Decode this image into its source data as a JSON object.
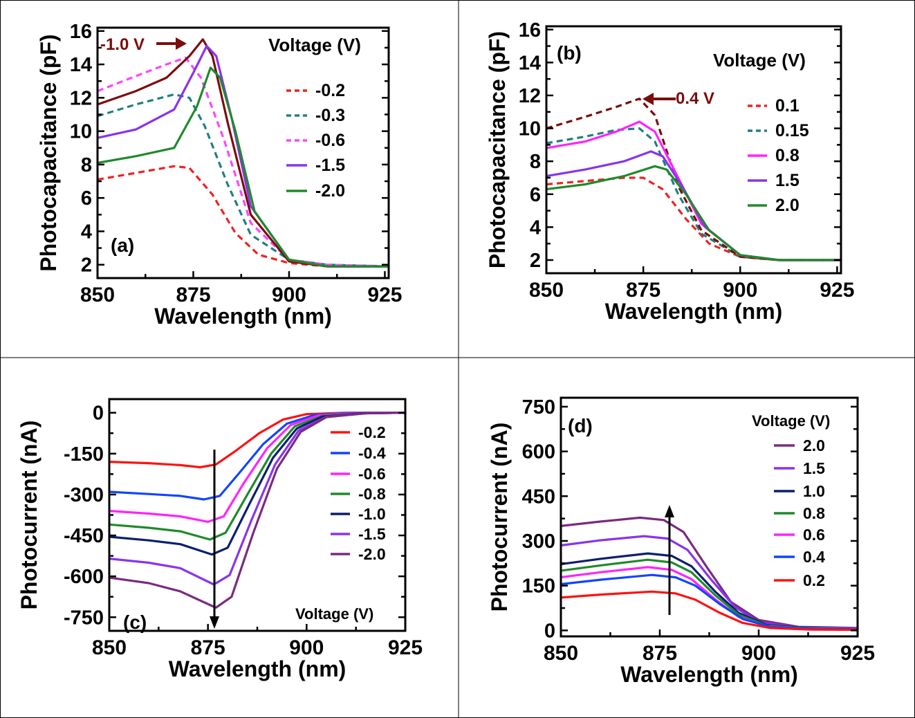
{
  "chart_data": [
    {
      "type": "line",
      "panel_label": "(a)",
      "xlabel": "Wavelength (nm)",
      "ylabel": "Photocapacitance (pF)",
      "xlim": [
        850,
        926
      ],
      "ylim": [
        1.2,
        16.2
      ],
      "xticks": [
        850,
        875,
        900,
        925
      ],
      "yticks": [
        2,
        4,
        6,
        8,
        10,
        12,
        14,
        16
      ],
      "legend_title": "Voltage (V)",
      "legend_position": "top-right",
      "annotation": {
        "text": "-1.0 V",
        "color": "#7b0c0c",
        "target_series": "-1.0"
      },
      "series": [
        {
          "name": "-0.2",
          "color": "#ee2222",
          "dash": true,
          "legend": true,
          "x": [
            850,
            860,
            870,
            874,
            880,
            886,
            892,
            900,
            910,
            926
          ],
          "y": [
            7.1,
            7.5,
            7.9,
            7.8,
            6.2,
            3.9,
            2.6,
            2.1,
            1.9,
            1.9
          ]
        },
        {
          "name": "-0.3",
          "color": "#1f8080",
          "dash": true,
          "legend": true,
          "x": [
            850,
            860,
            870,
            874,
            878,
            884,
            890,
            900,
            910,
            926
          ],
          "y": [
            10.9,
            11.6,
            12.2,
            12.0,
            10.3,
            6.8,
            3.8,
            2.3,
            2.0,
            1.9
          ]
        },
        {
          "name": "-0.6",
          "color": "#ff44ff",
          "dash": true,
          "legend": true,
          "x": [
            850,
            860,
            868,
            873,
            877,
            883,
            890,
            900,
            910,
            926
          ],
          "y": [
            12.4,
            13.3,
            14.0,
            14.4,
            13.2,
            9.5,
            4.5,
            2.3,
            2.0,
            1.9
          ]
        },
        {
          "name": "-1.0",
          "color": "#7b0c0c",
          "dash": false,
          "legend": false,
          "x": [
            850,
            860,
            868,
            874,
            877.5,
            880,
            884,
            890,
            900,
            910,
            926
          ],
          "y": [
            11.6,
            12.4,
            13.2,
            14.5,
            15.5,
            14.5,
            10.5,
            5.0,
            2.2,
            1.9,
            1.9
          ]
        },
        {
          "name": "-1.5",
          "color": "#8833ee",
          "dash": false,
          "legend": true,
          "x": [
            850,
            860,
            870,
            875,
            878.5,
            881,
            885,
            890,
            900,
            910,
            926
          ],
          "y": [
            9.6,
            10.1,
            11.3,
            13.5,
            15.1,
            14.5,
            10.8,
            5.5,
            2.3,
            1.9,
            1.9
          ]
        },
        {
          "name": "-2.0",
          "color": "#1f8a2a",
          "dash": false,
          "legend": true,
          "x": [
            850,
            860,
            870,
            876,
            879.5,
            882,
            886,
            891,
            900,
            910,
            926
          ],
          "y": [
            8.1,
            8.5,
            9.0,
            11.5,
            13.8,
            13.2,
            10.0,
            5.2,
            2.3,
            1.9,
            1.9
          ]
        }
      ]
    },
    {
      "type": "line",
      "panel_label": "(b)",
      "xlabel": "Wavelength (nm)",
      "ylabel": "Photocapacitance (pF)",
      "xlim": [
        850,
        926
      ],
      "ylim": [
        1.2,
        16.2
      ],
      "xticks": [
        850,
        875,
        900,
        925
      ],
      "yticks": [
        2,
        4,
        6,
        8,
        10,
        12,
        14,
        16
      ],
      "legend_title": "Voltage (V)",
      "legend_position": "top-right",
      "annotation": {
        "text": "0.4 V",
        "color": "#7b0c0c",
        "target_series": "0.4"
      },
      "series": [
        {
          "name": "0.1",
          "color": "#ee2222",
          "dash": true,
          "legend": true,
          "x": [
            850,
            860,
            870,
            875,
            880,
            886,
            892,
            900,
            910,
            926
          ],
          "y": [
            6.6,
            6.8,
            7.0,
            7.0,
            6.3,
            4.5,
            3.0,
            2.2,
            2.0,
            2.0
          ]
        },
        {
          "name": "0.15",
          "color": "#1f8080",
          "dash": true,
          "legend": true,
          "x": [
            850,
            860,
            868,
            874,
            878,
            884,
            890,
            900,
            910,
            926
          ],
          "y": [
            9.1,
            9.5,
            9.9,
            10.0,
            9.2,
            6.0,
            3.6,
            2.2,
            2.0,
            2.0
          ]
        },
        {
          "name": "0.4",
          "color": "#7b0c0c",
          "dash": true,
          "legend": false,
          "x": [
            850,
            860,
            868,
            874,
            876,
            878,
            884,
            890,
            900,
            910,
            926
          ],
          "y": [
            10.0,
            10.7,
            11.3,
            11.8,
            11.3,
            10.8,
            6.5,
            3.8,
            2.2,
            2.0,
            2.0
          ]
        },
        {
          "name": "0.8",
          "color": "#ff22ff",
          "dash": false,
          "legend": true,
          "x": [
            850,
            860,
            868,
            874,
            878,
            884,
            890,
            900,
            910,
            926
          ],
          "y": [
            8.8,
            9.2,
            9.8,
            10.4,
            9.8,
            7.0,
            4.2,
            2.3,
            2.0,
            2.0
          ]
        },
        {
          "name": "1.5",
          "color": "#8833ee",
          "dash": false,
          "legend": true,
          "x": [
            850,
            860,
            870,
            877,
            880,
            885,
            891,
            900,
            910,
            926
          ],
          "y": [
            7.1,
            7.5,
            8.0,
            8.6,
            8.3,
            6.5,
            4.0,
            2.3,
            2.0,
            2.0
          ]
        },
        {
          "name": "2.0",
          "color": "#1f8a2a",
          "dash": false,
          "legend": true,
          "x": [
            850,
            860,
            870,
            878,
            881,
            886,
            892,
            900,
            910,
            926
          ],
          "y": [
            6.3,
            6.6,
            7.1,
            7.7,
            7.5,
            6.0,
            3.8,
            2.3,
            2.0,
            2.0
          ]
        }
      ]
    },
    {
      "type": "line",
      "panel_label": "(c)",
      "xlabel": "Wavelength (nm)",
      "ylabel": "Photocurrent (nA)",
      "xlim": [
        850,
        925
      ],
      "ylim": [
        -800,
        50
      ],
      "xticks": [
        850,
        875,
        900,
        925
      ],
      "yticks": [
        0,
        -150,
        -300,
        -450,
        -600,
        -750
      ],
      "legend_title": "Voltage (V)",
      "legend_position": "right",
      "arrow": "down",
      "series": [
        {
          "name": "-0.2",
          "color": "#ff1111",
          "legend": true,
          "x": [
            850,
            860,
            868,
            873,
            877,
            882,
            888,
            894,
            900,
            910,
            925
          ],
          "y": [
            -180,
            -185,
            -192,
            -200,
            -190,
            -140,
            -75,
            -25,
            -5,
            0,
            0
          ]
        },
        {
          "name": "-0.4",
          "color": "#1144ff",
          "legend": true,
          "x": [
            850,
            860,
            868,
            874,
            878,
            883,
            889,
            895,
            902,
            912,
            925
          ],
          "y": [
            -290,
            -298,
            -305,
            -318,
            -305,
            -220,
            -115,
            -40,
            -8,
            0,
            0
          ]
        },
        {
          "name": "-0.6",
          "color": "#ff22ff",
          "legend": true,
          "x": [
            850,
            860,
            868,
            875,
            879,
            884,
            890,
            896,
            903,
            913,
            925
          ],
          "y": [
            -360,
            -370,
            -380,
            -400,
            -380,
            -260,
            -130,
            -45,
            -10,
            -1,
            0
          ]
        },
        {
          "name": "-0.8",
          "color": "#1f8a2a",
          "legend": true,
          "x": [
            850,
            860,
            868,
            875.5,
            879.5,
            885,
            891,
            897,
            904,
            914,
            925
          ],
          "y": [
            -410,
            -422,
            -435,
            -465,
            -440,
            -300,
            -150,
            -50,
            -12,
            -2,
            0
          ]
        },
        {
          "name": "-1.0",
          "color": "#0c1f6e",
          "legend": true,
          "x": [
            850,
            860,
            868,
            876,
            880,
            885.5,
            891.5,
            897.5,
            904,
            914,
            925
          ],
          "y": [
            -455,
            -468,
            -482,
            -520,
            -495,
            -335,
            -165,
            -58,
            -14,
            -2,
            0
          ]
        },
        {
          "name": "-1.5",
          "color": "#8833ee",
          "legend": true,
          "x": [
            850,
            860,
            868,
            876.5,
            880.5,
            886,
            892,
            898,
            905,
            915,
            925
          ],
          "y": [
            -535,
            -550,
            -570,
            -630,
            -595,
            -395,
            -190,
            -65,
            -15,
            -2,
            0
          ]
        },
        {
          "name": "-2.0",
          "color": "#7a2a80",
          "legend": true,
          "x": [
            850,
            860,
            868,
            877,
            881,
            886.5,
            892.5,
            898.5,
            905,
            915,
            925
          ],
          "y": [
            -605,
            -625,
            -655,
            -715,
            -675,
            -440,
            -205,
            -70,
            -16,
            -2,
            0
          ]
        }
      ]
    },
    {
      "type": "line",
      "panel_label": "(d)",
      "xlabel": "Wavelength (nm)",
      "ylabel": "Photocurrent (nA)",
      "xlim": [
        850,
        925
      ],
      "ylim": [
        -20,
        780
      ],
      "xticks": [
        850,
        875,
        900,
        925
      ],
      "yticks": [
        0,
        150,
        300,
        450,
        600,
        750
      ],
      "legend_title": "Voltage (V)",
      "legend_position": "top-right",
      "arrow": "up",
      "series": [
        {
          "name": "2.0",
          "color": "#7a2a80",
          "legend": true,
          "x": [
            850,
            860,
            870,
            876,
            881,
            887,
            893,
            900,
            910,
            925
          ],
          "y": [
            350,
            365,
            378,
            370,
            330,
            210,
            95,
            35,
            12,
            8
          ]
        },
        {
          "name": "1.5",
          "color": "#8833ee",
          "legend": true,
          "x": [
            850,
            860,
            871,
            877,
            882,
            888,
            894,
            900,
            910,
            925
          ],
          "y": [
            285,
            302,
            316,
            308,
            270,
            170,
            78,
            28,
            10,
            7
          ]
        },
        {
          "name": "1.0",
          "color": "#0c1f6e",
          "legend": true,
          "x": [
            850,
            860,
            872,
            878,
            883,
            889,
            895,
            902,
            912,
            925
          ],
          "y": [
            222,
            240,
            258,
            250,
            215,
            130,
            58,
            18,
            8,
            6
          ]
        },
        {
          "name": "0.8",
          "color": "#1f8a2a",
          "legend": true,
          "x": [
            850,
            860,
            872,
            878,
            883,
            889,
            895,
            902,
            912,
            925
          ],
          "y": [
            200,
            218,
            237,
            228,
            195,
            118,
            52,
            16,
            7,
            6
          ]
        },
        {
          "name": "0.6",
          "color": "#ff22ff",
          "legend": true,
          "x": [
            850,
            860,
            872,
            878,
            883,
            889,
            895,
            902,
            912,
            925
          ],
          "y": [
            178,
            195,
            212,
            203,
            172,
            104,
            45,
            14,
            6,
            5
          ]
        },
        {
          "name": "0.4",
          "color": "#1144ff",
          "legend": true,
          "x": [
            850,
            860,
            873,
            879,
            884,
            890,
            896,
            903,
            913,
            925
          ],
          "y": [
            155,
            170,
            186,
            178,
            150,
            90,
            38,
            12,
            5,
            4
          ]
        },
        {
          "name": "0.2",
          "color": "#ff1111",
          "legend": true,
          "x": [
            850,
            860,
            873,
            879,
            884,
            890,
            896,
            903,
            913,
            925
          ],
          "y": [
            110,
            120,
            130,
            124,
            103,
            60,
            25,
            8,
            3,
            2
          ]
        }
      ]
    }
  ]
}
